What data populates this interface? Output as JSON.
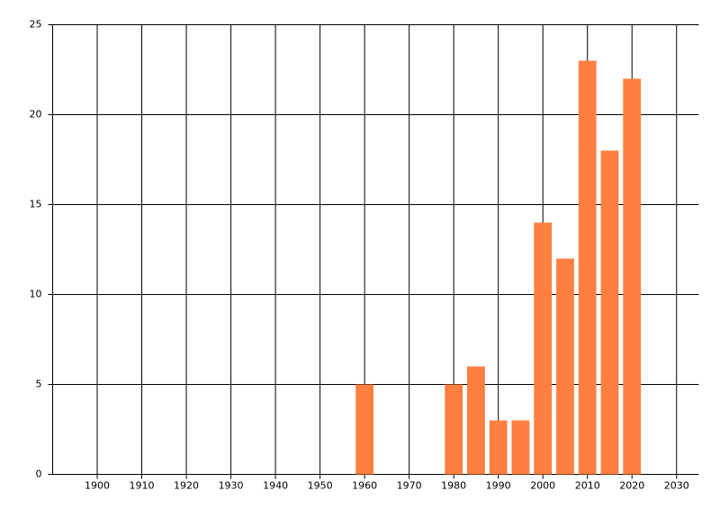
{
  "chart_data": {
    "type": "bar",
    "x": [
      1960,
      1980,
      1985,
      1990,
      1995,
      2000,
      2005,
      2010,
      2015,
      2020
    ],
    "values": [
      5,
      5,
      6,
      3,
      3,
      14,
      12,
      23,
      18,
      22
    ],
    "color": "#ff7f40",
    "xlim": [
      1890,
      2035
    ],
    "xticks": [
      1900,
      1910,
      1920,
      1930,
      1940,
      1950,
      1960,
      1970,
      1980,
      1990,
      2000,
      2010,
      2020,
      2030
    ],
    "ylim": [
      0,
      25
    ],
    "yticks": [
      0,
      5,
      10,
      15,
      20,
      25
    ],
    "grid": true
  }
}
